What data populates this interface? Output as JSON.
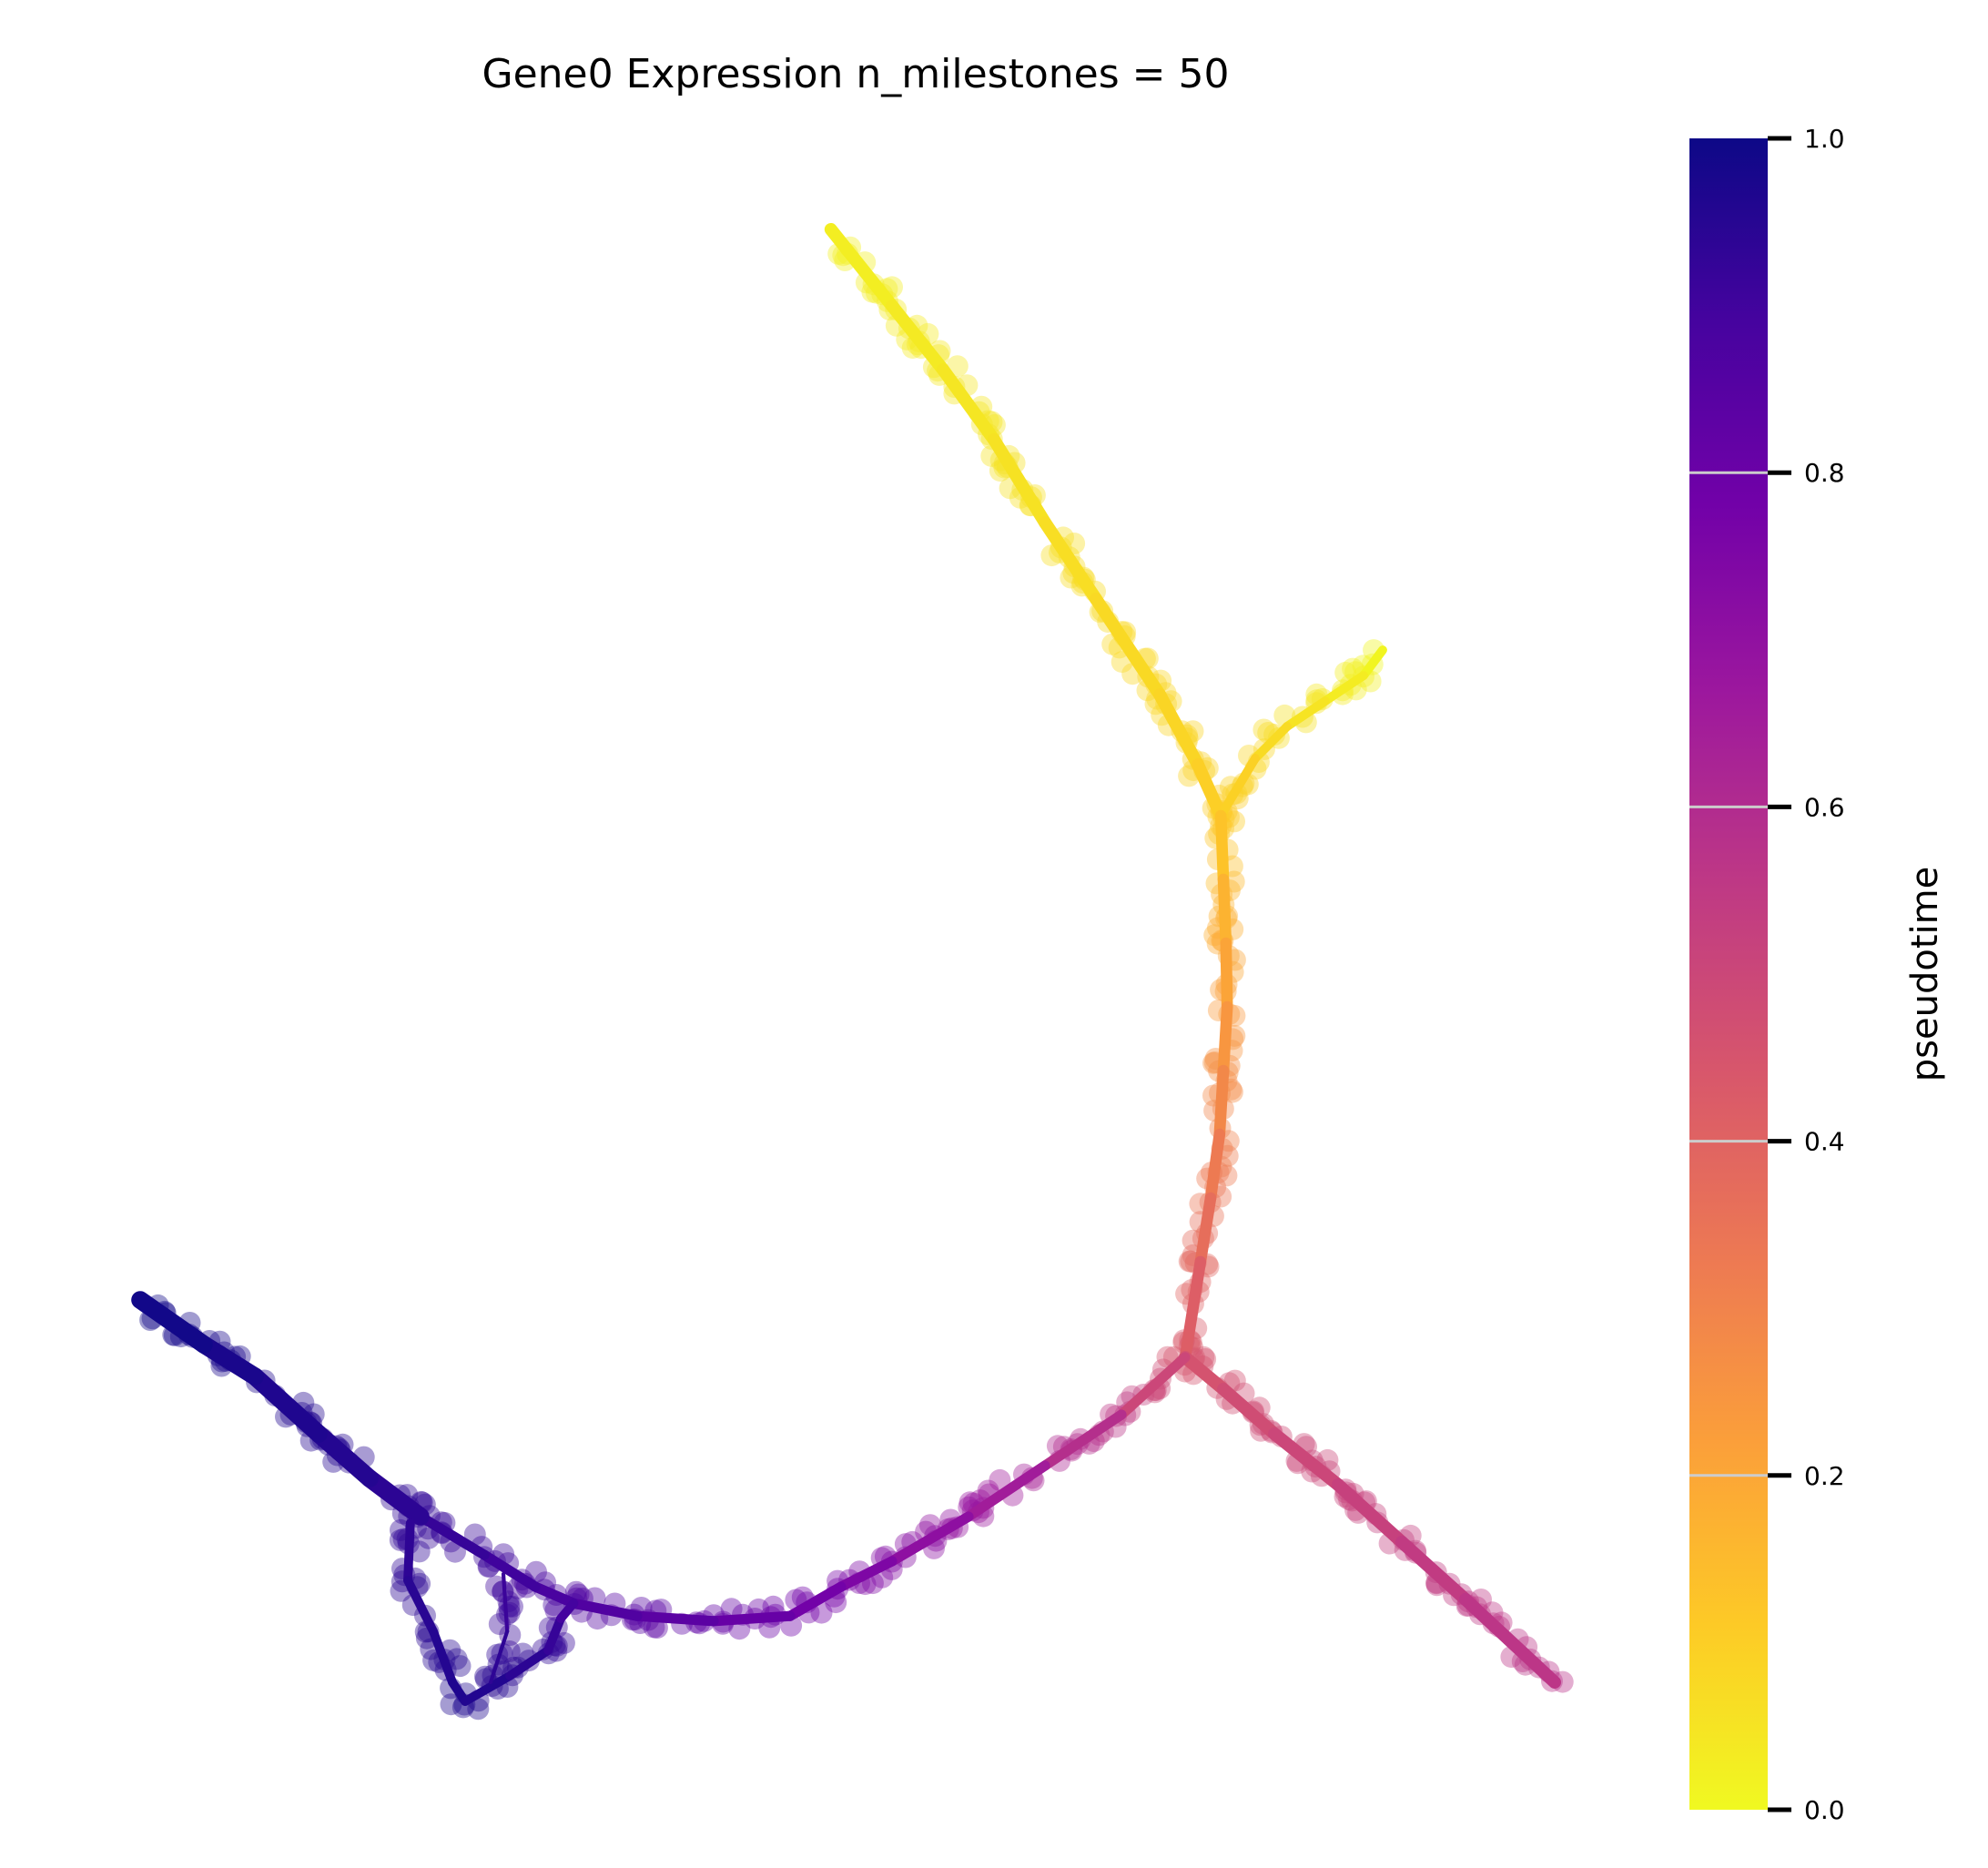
{
  "chart_data": {
    "type": "scatter",
    "title": "Gene0 Expression n_milestones = 50",
    "xlabel": "",
    "ylabel": "",
    "axes_visible": false,
    "grid": false,
    "colormap": "plasma",
    "colorbar": {
      "label": "pseudotime",
      "range": [
        0.0,
        1.0
      ],
      "ticks": [
        0.0,
        0.2,
        0.4,
        0.6,
        0.8,
        1.0
      ],
      "tick_labels": [
        "0.0",
        "0.2",
        "0.4",
        "0.6",
        "0.8",
        "1.0"
      ],
      "position": "right"
    },
    "colormap_stops": [
      "#0d0887",
      "#46039f",
      "#7201a8",
      "#9c179e",
      "#bd3786",
      "#d8576b",
      "#ed7953",
      "#fb9f3a",
      "#fdca26",
      "#f0f921"
    ],
    "xlim": [
      0,
      1520
    ],
    "ylim": [
      0,
      1400
    ],
    "branches": [
      {
        "name": "",
        "width": 10,
        "points": [
          [
            652,
            180,
            0.02
          ],
          [
            700,
            240,
            0.03
          ],
          [
            740,
            290,
            0.04
          ],
          [
            780,
            345,
            0.05
          ],
          [
            820,
            410,
            0.06
          ],
          [
            860,
            470,
            0.07
          ],
          [
            910,
            545,
            0.08
          ],
          [
            940,
            600,
            0.09
          ],
          [
            958,
            640,
            0.11
          ]
        ]
      },
      {
        "name": "",
        "width": 7,
        "points": [
          [
            1085,
            510,
            0.0
          ],
          [
            1070,
            530,
            0.02
          ],
          [
            1040,
            550,
            0.04
          ],
          [
            1010,
            570,
            0.06
          ],
          [
            985,
            595,
            0.08
          ],
          [
            958,
            640,
            0.11
          ]
        ]
      },
      {
        "name": "",
        "width": 9,
        "points": [
          [
            958,
            640,
            0.11
          ],
          [
            960,
            690,
            0.15
          ],
          [
            962,
            740,
            0.19
          ],
          [
            963,
            790,
            0.23
          ],
          [
            960,
            840,
            0.27
          ],
          [
            957,
            890,
            0.31
          ],
          [
            950,
            940,
            0.35
          ],
          [
            942,
            990,
            0.39
          ],
          [
            930,
            1065,
            0.45
          ]
        ]
      },
      {
        "name": "",
        "width": 10,
        "points": [
          [
            930,
            1065,
            0.45
          ],
          [
            960,
            1090,
            0.47
          ],
          [
            1000,
            1125,
            0.49
          ],
          [
            1050,
            1165,
            0.51
          ],
          [
            1100,
            1210,
            0.53
          ],
          [
            1150,
            1255,
            0.55
          ],
          [
            1220,
            1320,
            0.57
          ]
        ]
      },
      {
        "name": "",
        "width": 8,
        "points": [
          [
            930,
            1065,
            0.45
          ],
          [
            880,
            1110,
            0.55
          ],
          [
            820,
            1150,
            0.62
          ],
          [
            760,
            1190,
            0.68
          ],
          [
            700,
            1225,
            0.73
          ],
          [
            660,
            1245,
            0.76
          ],
          [
            620,
            1268,
            0.79
          ],
          [
            560,
            1272,
            0.82
          ],
          [
            500,
            1268,
            0.85
          ],
          [
            450,
            1258,
            0.87
          ],
          [
            420,
            1245,
            0.89
          ],
          [
            380,
            1220,
            0.91
          ],
          [
            330,
            1190,
            0.93
          ]
        ]
      },
      {
        "name": "",
        "width": 14,
        "points": [
          [
            330,
            1190,
            0.93
          ],
          [
            290,
            1160,
            0.95
          ],
          [
            250,
            1125,
            0.96
          ],
          [
            200,
            1080,
            0.97
          ],
          [
            160,
            1055,
            0.98
          ],
          [
            110,
            1020,
            1.0
          ]
        ]
      },
      {
        "name": "",
        "width": 7,
        "points": [
          [
            322,
            1195,
            0.93
          ],
          [
            320,
            1240,
            0.94
          ],
          [
            340,
            1280,
            0.95
          ],
          [
            355,
            1320,
            0.96
          ],
          [
            365,
            1335,
            0.97
          ]
        ]
      },
      {
        "name": "",
        "width": 7,
        "points": [
          [
            365,
            1335,
            0.97
          ],
          [
            400,
            1315,
            0.95
          ],
          [
            430,
            1295,
            0.93
          ],
          [
            440,
            1270,
            0.91
          ],
          [
            450,
            1258,
            0.87
          ]
        ]
      },
      {
        "name": "",
        "width": 3,
        "points": [
          [
            395,
            1235,
            0.9
          ],
          [
            398,
            1280,
            0.92
          ],
          [
            385,
            1320,
            0.95
          ]
        ]
      }
    ]
  }
}
